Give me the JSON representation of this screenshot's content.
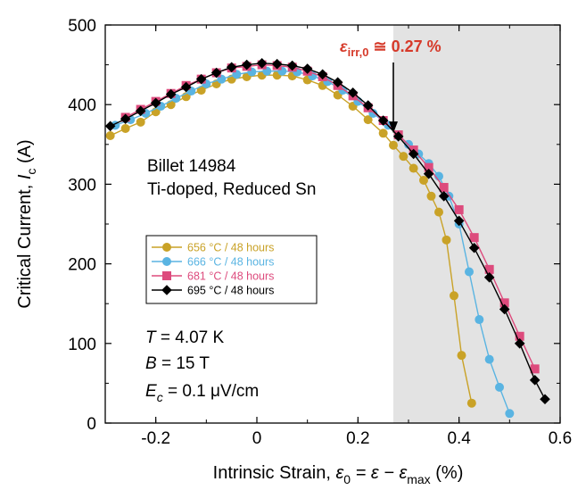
{
  "chart_data": {
    "type": "line",
    "title": "",
    "xlabel_parts": {
      "main": "Intrinsic Strain, ",
      "eps": "ε",
      "sub0": "0",
      "eq": " = ε − ε",
      "submax": "max",
      "unit": " (%)"
    },
    "ylabel_parts": {
      "main": "Critical Current, ",
      "I": "I",
      "sub": "c",
      "unit": " (A)"
    },
    "xlim": [
      -0.3,
      0.6
    ],
    "ylim": [
      0,
      500
    ],
    "x_ticks": [
      -0.2,
      0,
      0.2,
      0.4,
      0.6
    ],
    "y_ticks": [
      0,
      100,
      200,
      300,
      400,
      500
    ],
    "x_tick_labels": [
      "-0.2",
      "0",
      "0.2",
      "0.4",
      "0.6"
    ],
    "y_tick_labels": [
      "0",
      "100",
      "200",
      "300",
      "400",
      "500"
    ],
    "shaded_region": {
      "x_start": 0.27,
      "x_end": 0.6,
      "color": "#e3e3e3"
    },
    "annotation": {
      "eps": "ε",
      "sub": "irr,0",
      "rest": " ≅ 0.27 %",
      "x": 0.27,
      "y_arrow_tip": 362,
      "color": "#d63a2a"
    },
    "info_text": {
      "line1": "Billet 14984",
      "line2": "Ti-doped, Reduced Sn",
      "color": "#4a3b9c"
    },
    "conditions": [
      {
        "sym": "T",
        "rest": " = 4.07 K"
      },
      {
        "sym": "B",
        "rest": " = 15 T"
      },
      {
        "sym": "E",
        "sub": "c",
        "rest": " = 0.1 μV/cm"
      }
    ],
    "legend_placement": "center-left",
    "series": [
      {
        "name": "656 °C / 48 hours",
        "color": "#c9a227",
        "marker": "circle",
        "x": [
          -0.29,
          -0.26,
          -0.23,
          -0.2,
          -0.17,
          -0.14,
          -0.11,
          -0.08,
          -0.05,
          -0.02,
          0.01,
          0.04,
          0.07,
          0.1,
          0.13,
          0.16,
          0.19,
          0.22,
          0.25,
          0.27,
          0.29,
          0.31,
          0.33,
          0.345,
          0.36,
          0.375,
          0.39,
          0.405,
          0.425
        ],
        "values": [
          361,
          370,
          378,
          391,
          400,
          410,
          418,
          426,
          432,
          435,
          437,
          437,
          436,
          431,
          424,
          412,
          398,
          381,
          364,
          349,
          335,
          320,
          305,
          285,
          265,
          230,
          160,
          85,
          25
        ]
      },
      {
        "name": "666 °C / 48 hours",
        "color": "#5ab4e2",
        "marker": "circle",
        "x": [
          -0.28,
          -0.25,
          -0.22,
          -0.19,
          -0.16,
          -0.13,
          -0.1,
          -0.07,
          -0.04,
          -0.01,
          0.02,
          0.05,
          0.08,
          0.11,
          0.14,
          0.17,
          0.2,
          0.23,
          0.26,
          0.28,
          0.3,
          0.32,
          0.34,
          0.36,
          0.38,
          0.4,
          0.42,
          0.44,
          0.46,
          0.48,
          0.5
        ],
        "values": [
          374,
          381,
          389,
          398,
          408,
          417,
          426,
          432,
          438,
          441,
          442,
          442,
          441,
          436,
          429,
          418,
          404,
          389,
          374,
          362,
          350,
          338,
          326,
          310,
          285,
          250,
          190,
          130,
          80,
          45,
          12
        ]
      },
      {
        "name": "681 °C / 48 hours",
        "color": "#dd4b7d",
        "marker": "square",
        "x": [
          -0.26,
          -0.23,
          -0.2,
          -0.17,
          -0.14,
          -0.11,
          -0.08,
          -0.05,
          -0.02,
          0.01,
          0.04,
          0.07,
          0.1,
          0.13,
          0.16,
          0.19,
          0.22,
          0.25,
          0.28,
          0.31,
          0.34,
          0.37,
          0.4,
          0.43,
          0.46,
          0.49,
          0.52,
          0.55
        ],
        "values": [
          384,
          394,
          404,
          414,
          424,
          432,
          440,
          446,
          448,
          450,
          449,
          447,
          442,
          435,
          424,
          411,
          396,
          380,
          362,
          343,
          321,
          296,
          268,
          233,
          193,
          151,
          109,
          68
        ]
      },
      {
        "name": "695 °C / 48 hours",
        "color": "#000000",
        "marker": "diamond",
        "x": [
          -0.29,
          -0.26,
          -0.23,
          -0.2,
          -0.17,
          -0.14,
          -0.11,
          -0.08,
          -0.05,
          -0.02,
          0.01,
          0.04,
          0.07,
          0.1,
          0.13,
          0.16,
          0.19,
          0.22,
          0.25,
          0.28,
          0.31,
          0.34,
          0.37,
          0.4,
          0.43,
          0.46,
          0.49,
          0.52,
          0.55,
          0.57
        ],
        "values": [
          373,
          382,
          392,
          402,
          413,
          422,
          432,
          440,
          447,
          450,
          452,
          451,
          449,
          445,
          438,
          428,
          415,
          399,
          380,
          360,
          338,
          313,
          285,
          254,
          220,
          183,
          143,
          100,
          54,
          30
        ]
      }
    ]
  }
}
